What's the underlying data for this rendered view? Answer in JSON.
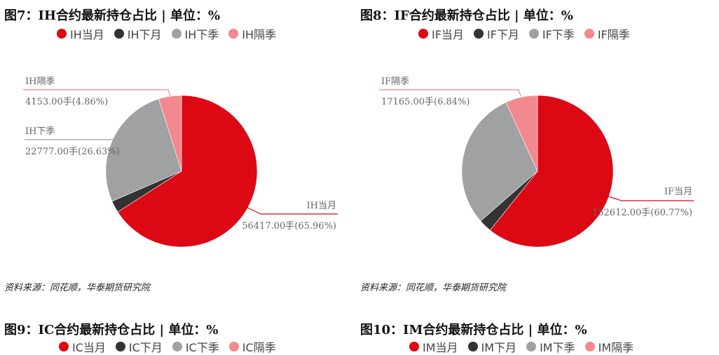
{
  "colors": {
    "当月": "#dc0915",
    "下月": "#333333",
    "下季": "#9fa1a3",
    "隔季": "#f2898e"
  },
  "charts": [
    {
      "title": "图7：IH合约最新持仓占比 | 单位：%",
      "legend": [
        "IH当月",
        "IH下月",
        "IH下季",
        "IH隔季"
      ],
      "source": "资料来源：同花顺，华泰期货研究院",
      "chart_data": {
        "type": "pie",
        "categories": [
          "IH当月",
          "IH下月",
          "IH下季",
          "IH隔季"
        ],
        "values": [
          65.96,
          2.55,
          26.63,
          4.86
        ],
        "units": "%"
      },
      "labels": {
        "dangyue": {
          "name": "IH当月",
          "value": "56417.00手(65.96%)"
        },
        "xiaji": {
          "name": "IH下季",
          "value": "22777.00手(26.63%)"
        },
        "geji": {
          "name": "IH隔季",
          "value": "4153.00手(4.86%)"
        }
      }
    },
    {
      "title": "图8：IF合约最新持仓占比 | 单位：%",
      "legend": [
        "IF当月",
        "IF下月",
        "IF下季",
        "IF隔季"
      ],
      "source": "资料来源：同花顺，华泰期货研究院",
      "chart_data": {
        "type": "pie",
        "categories": [
          "IF当月",
          "IF下月",
          "IF下季",
          "IF隔季"
        ],
        "values": [
          60.77,
          2.8,
          29.59,
          6.84
        ],
        "units": "%"
      },
      "labels": {
        "dangyue": {
          "name": "IF当月",
          "value": "152612.00手(60.77%)"
        },
        "geji": {
          "name": "IF隔季",
          "value": "17165.00手(6.84%)"
        }
      }
    },
    {
      "title": "图9：IC合约最新持仓占比 | 单位：%",
      "legend": [
        "IC当月",
        "IC下月",
        "IC下季",
        "IC隔季"
      ]
    },
    {
      "title": "图10：IM合约最新持仓占比 | 单位：%",
      "legend": [
        "IM当月",
        "IM下月",
        "IM下季",
        "IM隔季"
      ]
    }
  ]
}
